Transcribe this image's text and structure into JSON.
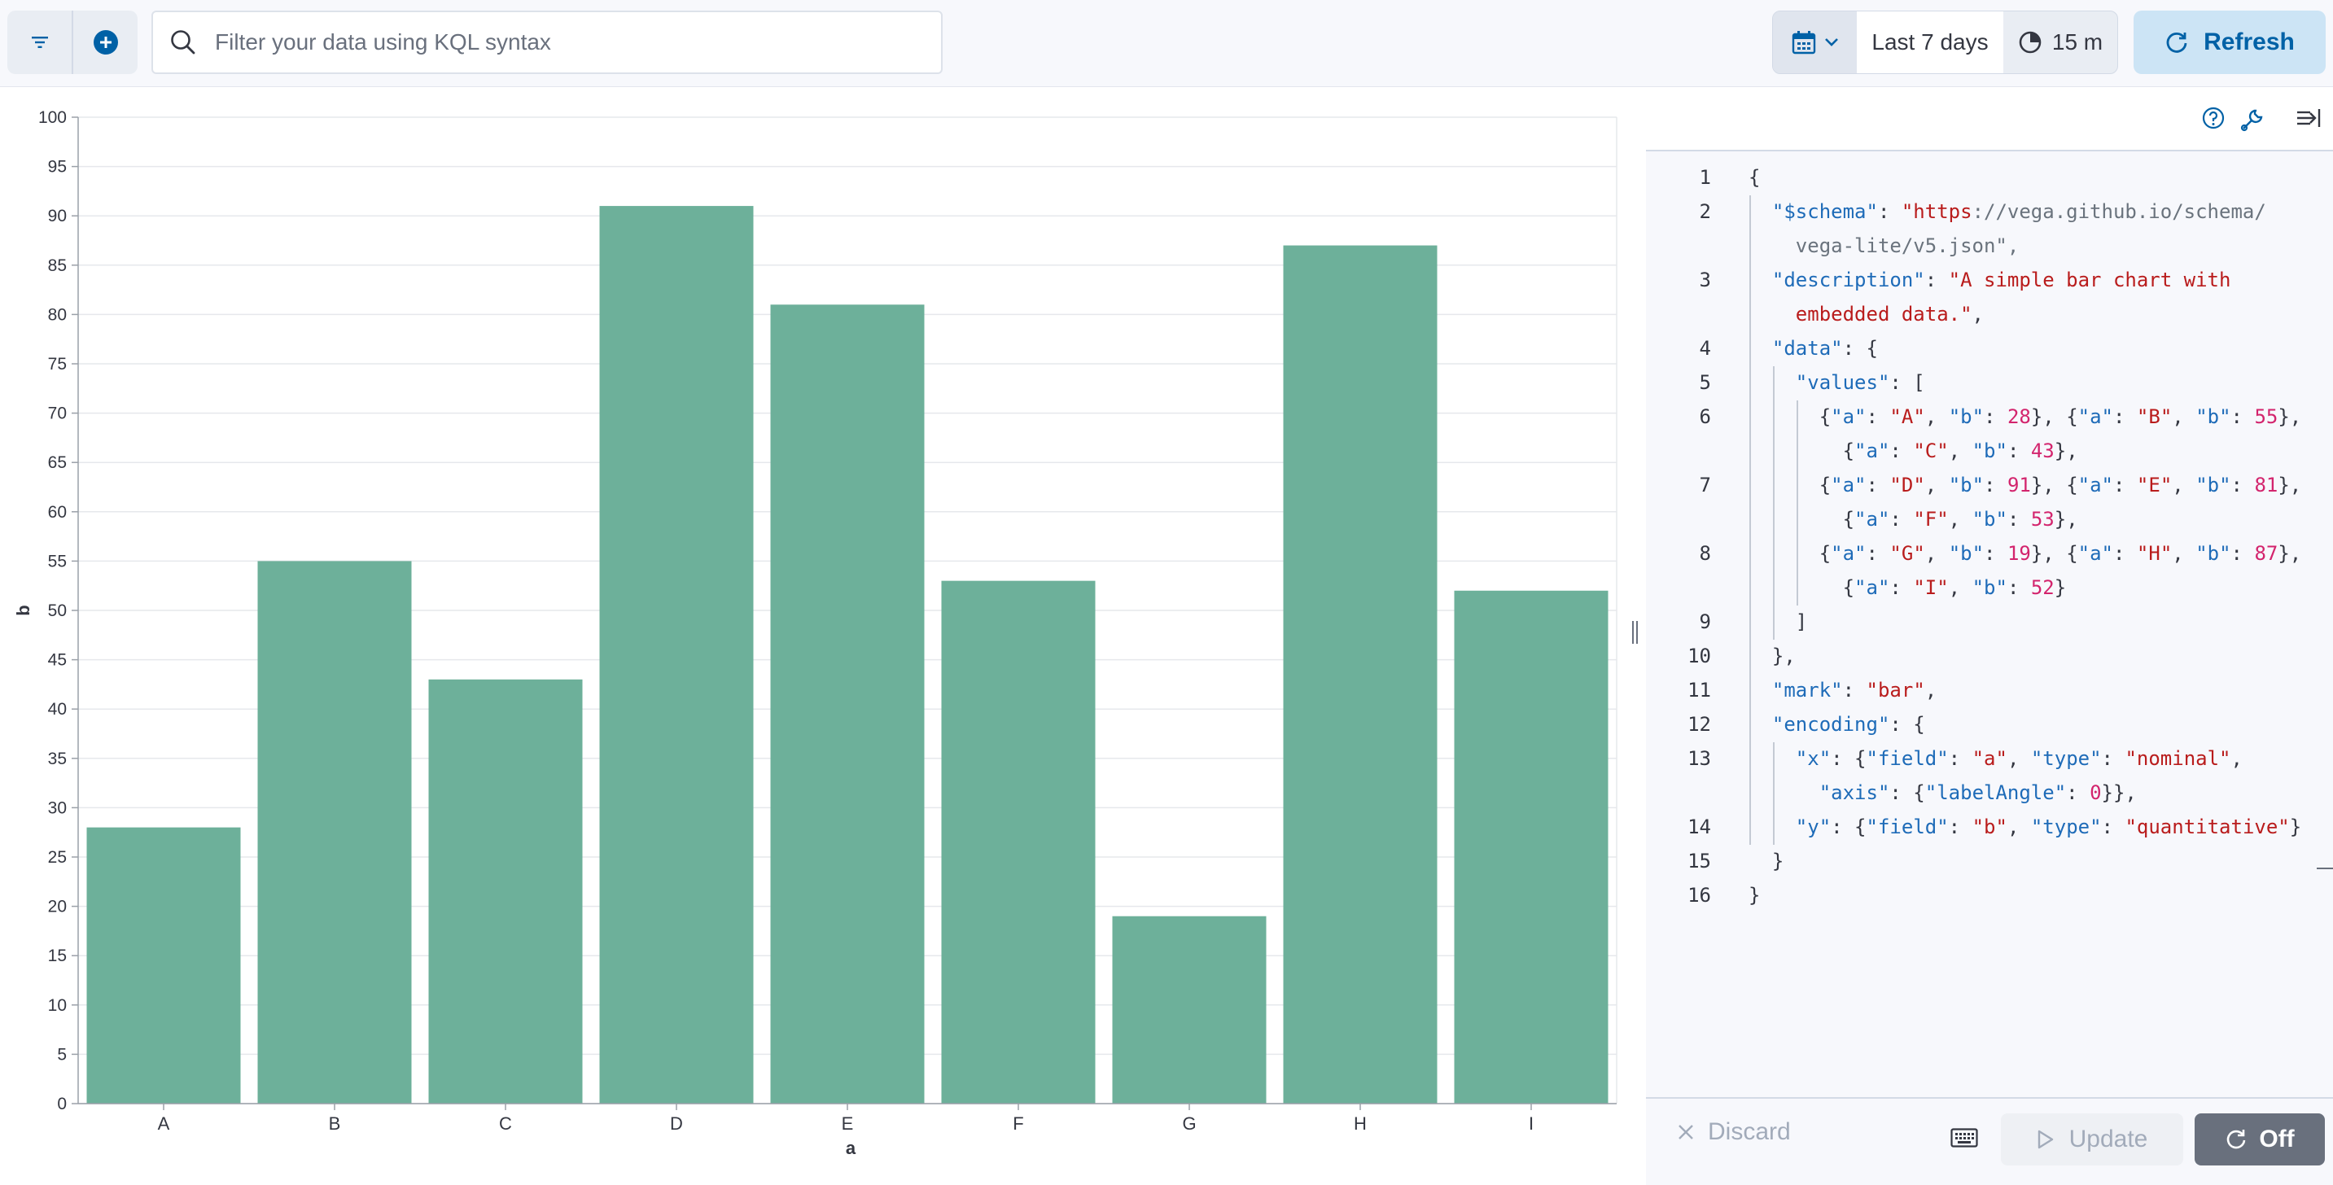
{
  "topbar": {
    "filter_button_label": "filter options",
    "add_filter_label": "add filter",
    "query_placeholder": "Filter your data using KQL syntax",
    "date_range": "Last 7 days",
    "refresh_interval": "15 m",
    "refresh_label": "Refresh"
  },
  "chart_data": {
    "type": "bar",
    "categories": [
      "A",
      "B",
      "C",
      "D",
      "E",
      "F",
      "G",
      "H",
      "I"
    ],
    "values": [
      28,
      55,
      43,
      91,
      81,
      53,
      19,
      87,
      52
    ],
    "xlabel": "a",
    "ylabel": "b",
    "ylim": [
      0,
      100
    ],
    "yticks": [
      0,
      5,
      10,
      15,
      20,
      25,
      30,
      35,
      40,
      45,
      50,
      55,
      60,
      65,
      70,
      75,
      80,
      85,
      90,
      95,
      100
    ],
    "grid": true,
    "bar_color": "#6db09a"
  },
  "editor": {
    "line_numbers": [
      "1",
      "2",
      "",
      "3",
      "",
      "4",
      "5",
      "6",
      "",
      "7",
      "",
      "8",
      "",
      "9",
      "10",
      "11",
      "12",
      "13",
      "",
      "14",
      "15",
      "16"
    ],
    "lines": [
      {
        "tokens": [
          [
            "p",
            "{"
          ]
        ]
      },
      {
        "tokens": [
          [
            "p",
            "  "
          ],
          [
            "k",
            "\"$schema\""
          ],
          [
            "p",
            ": "
          ],
          [
            "s",
            "\"https"
          ],
          [
            "url",
            "://vega.github.io/schema/"
          ]
        ]
      },
      {
        "tokens": [
          [
            "url",
            "    vega-lite/v5.json\""
          ],
          [
            "url",
            ","
          ]
        ]
      },
      {
        "tokens": [
          [
            "p",
            "  "
          ],
          [
            "k",
            "\"description\""
          ],
          [
            "p",
            ": "
          ],
          [
            "s",
            "\"A simple bar chart with"
          ]
        ]
      },
      {
        "tokens": [
          [
            "s",
            "    embedded data.\""
          ],
          [
            "p",
            ","
          ]
        ]
      },
      {
        "tokens": [
          [
            "p",
            "  "
          ],
          [
            "k",
            "\"data\""
          ],
          [
            "p",
            ": {"
          ]
        ]
      },
      {
        "tokens": [
          [
            "p",
            "    "
          ],
          [
            "k",
            "\"values\""
          ],
          [
            "p",
            ": ["
          ]
        ]
      },
      {
        "tokens": [
          [
            "p",
            "      {"
          ],
          [
            "k",
            "\"a\""
          ],
          [
            "p",
            ": "
          ],
          [
            "s",
            "\"A\""
          ],
          [
            "p",
            ", "
          ],
          [
            "k",
            "\"b\""
          ],
          [
            "p",
            ": "
          ],
          [
            "n",
            "28"
          ],
          [
            "p",
            "}, {"
          ],
          [
            "k",
            "\"a\""
          ],
          [
            "p",
            ": "
          ],
          [
            "s",
            "\"B\""
          ],
          [
            "p",
            ", "
          ],
          [
            "k",
            "\"b\""
          ],
          [
            "p",
            ": "
          ],
          [
            "n",
            "55"
          ],
          [
            "p",
            "},"
          ]
        ]
      },
      {
        "tokens": [
          [
            "p",
            "        {"
          ],
          [
            "k",
            "\"a\""
          ],
          [
            "p",
            ": "
          ],
          [
            "s",
            "\"C\""
          ],
          [
            "p",
            ", "
          ],
          [
            "k",
            "\"b\""
          ],
          [
            "p",
            ": "
          ],
          [
            "n",
            "43"
          ],
          [
            "p",
            "},"
          ]
        ]
      },
      {
        "tokens": [
          [
            "p",
            "      {"
          ],
          [
            "k",
            "\"a\""
          ],
          [
            "p",
            ": "
          ],
          [
            "s",
            "\"D\""
          ],
          [
            "p",
            ", "
          ],
          [
            "k",
            "\"b\""
          ],
          [
            "p",
            ": "
          ],
          [
            "n",
            "91"
          ],
          [
            "p",
            "}, {"
          ],
          [
            "k",
            "\"a\""
          ],
          [
            "p",
            ": "
          ],
          [
            "s",
            "\"E\""
          ],
          [
            "p",
            ", "
          ],
          [
            "k",
            "\"b\""
          ],
          [
            "p",
            ": "
          ],
          [
            "n",
            "81"
          ],
          [
            "p",
            "},"
          ]
        ]
      },
      {
        "tokens": [
          [
            "p",
            "        {"
          ],
          [
            "k",
            "\"a\""
          ],
          [
            "p",
            ": "
          ],
          [
            "s",
            "\"F\""
          ],
          [
            "p",
            ", "
          ],
          [
            "k",
            "\"b\""
          ],
          [
            "p",
            ": "
          ],
          [
            "n",
            "53"
          ],
          [
            "p",
            "},"
          ]
        ]
      },
      {
        "tokens": [
          [
            "p",
            "      {"
          ],
          [
            "k",
            "\"a\""
          ],
          [
            "p",
            ": "
          ],
          [
            "s",
            "\"G\""
          ],
          [
            "p",
            ", "
          ],
          [
            "k",
            "\"b\""
          ],
          [
            "p",
            ": "
          ],
          [
            "n",
            "19"
          ],
          [
            "p",
            "}, {"
          ],
          [
            "k",
            "\"a\""
          ],
          [
            "p",
            ": "
          ],
          [
            "s",
            "\"H\""
          ],
          [
            "p",
            ", "
          ],
          [
            "k",
            "\"b\""
          ],
          [
            "p",
            ": "
          ],
          [
            "n",
            "87"
          ],
          [
            "p",
            "},"
          ]
        ]
      },
      {
        "tokens": [
          [
            "p",
            "        {"
          ],
          [
            "k",
            "\"a\""
          ],
          [
            "p",
            ": "
          ],
          [
            "s",
            "\"I\""
          ],
          [
            "p",
            ", "
          ],
          [
            "k",
            "\"b\""
          ],
          [
            "p",
            ": "
          ],
          [
            "n",
            "52"
          ],
          [
            "p",
            "}"
          ]
        ]
      },
      {
        "tokens": [
          [
            "p",
            "    ]"
          ]
        ]
      },
      {
        "tokens": [
          [
            "p",
            "  },"
          ]
        ]
      },
      {
        "tokens": [
          [
            "p",
            "  "
          ],
          [
            "k",
            "\"mark\""
          ],
          [
            "p",
            ": "
          ],
          [
            "s",
            "\"bar\""
          ],
          [
            "p",
            ","
          ]
        ]
      },
      {
        "tokens": [
          [
            "p",
            "  "
          ],
          [
            "k",
            "\"encoding\""
          ],
          [
            "p",
            ": {"
          ]
        ]
      },
      {
        "tokens": [
          [
            "p",
            "    "
          ],
          [
            "k",
            "\"x\""
          ],
          [
            "p",
            ": {"
          ],
          [
            "k",
            "\"field\""
          ],
          [
            "p",
            ": "
          ],
          [
            "s",
            "\"a\""
          ],
          [
            "p",
            ", "
          ],
          [
            "k",
            "\"type\""
          ],
          [
            "p",
            ": "
          ],
          [
            "s",
            "\"nominal\""
          ],
          [
            "p",
            ","
          ]
        ]
      },
      {
        "tokens": [
          [
            "p",
            "      "
          ],
          [
            "k",
            "\"axis\""
          ],
          [
            "p",
            ": {"
          ],
          [
            "k",
            "\"labelAngle\""
          ],
          [
            "p",
            ": "
          ],
          [
            "n",
            "0"
          ],
          [
            "p",
            "}},"
          ]
        ]
      },
      {
        "tokens": [
          [
            "p",
            "    "
          ],
          [
            "k",
            "\"y\""
          ],
          [
            "p",
            ": {"
          ],
          [
            "k",
            "\"field\""
          ],
          [
            "p",
            ": "
          ],
          [
            "s",
            "\"b\""
          ],
          [
            "p",
            ", "
          ],
          [
            "k",
            "\"type\""
          ],
          [
            "p",
            ": "
          ],
          [
            "s",
            "\"quantitative\""
          ],
          [
            "p",
            "}"
          ]
        ]
      },
      {
        "tokens": [
          [
            "p",
            "  }"
          ]
        ]
      },
      {
        "tokens": [
          [
            "p",
            "}"
          ]
        ]
      }
    ],
    "discard_label": "Discard",
    "update_label": "Update",
    "auto_apply_label": "Off"
  }
}
